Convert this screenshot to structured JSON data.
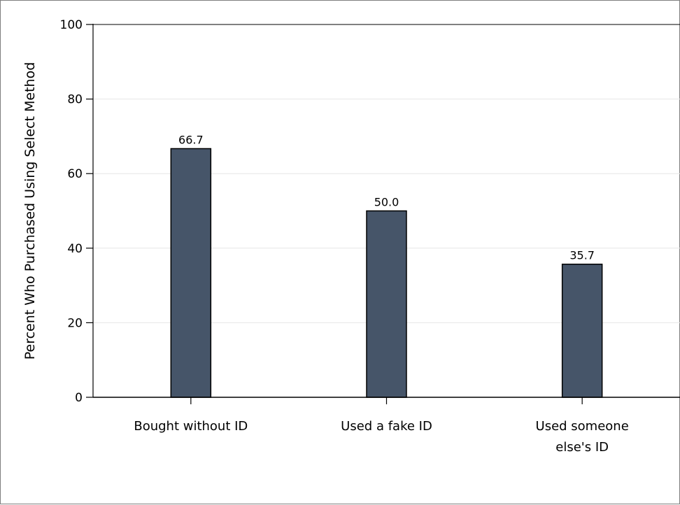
{
  "chart_data": {
    "type": "bar",
    "title": "",
    "xlabel": "",
    "ylabel": "Percent Who Purchased Using Select Method",
    "categories": [
      [
        "Bought without ID"
      ],
      [
        "Used a fake ID"
      ],
      [
        "Used someone",
        "else's ID"
      ]
    ],
    "values": [
      66.7,
      50.0,
      35.7
    ],
    "value_labels": [
      "66.7",
      "50.0",
      "35.7"
    ],
    "ylim": [
      0,
      100
    ],
    "yticks": [
      0,
      20,
      40,
      60,
      80,
      100
    ],
    "grid": true,
    "legend": "none",
    "colors": {
      "bar": "#465569",
      "bar_edge": "#000000",
      "grid": "#e6e6e6",
      "axis": "#000000"
    }
  }
}
